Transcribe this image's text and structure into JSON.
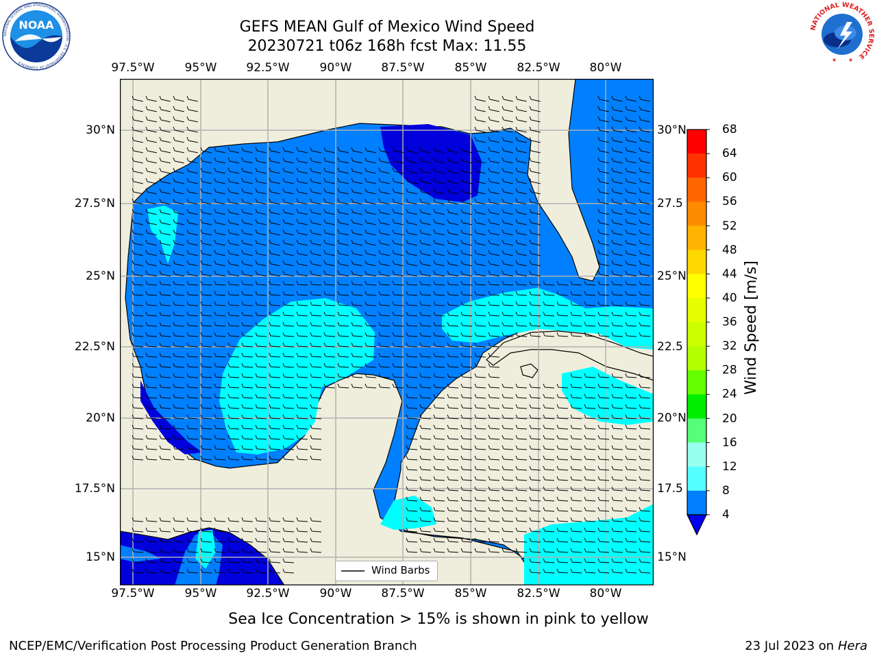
{
  "title": {
    "line1": "GEFS MEAN Gulf of Mexico Wind Speed",
    "line2": "20230721 t06z 168h fcst   Max: 11.55"
  },
  "map": {
    "lon_ticks": [
      "97.5°W",
      "95°W",
      "92.5°W",
      "90°W",
      "87.5°W",
      "85°W",
      "82.5°W",
      "80°W"
    ],
    "lat_ticks": [
      "30°N",
      "27.5°N",
      "25°N",
      "22.5°N",
      "20°N",
      "17.5°N",
      "15°N"
    ],
    "lat_ticks_right": [
      "30°N",
      "27.5",
      "25°N",
      "22.5",
      "20°N",
      "17.5",
      "15°N"
    ],
    "extent": {
      "lon": [
        -98,
        -78
      ],
      "lat": [
        14,
        31.5
      ]
    },
    "land_color": "#efeddc",
    "grid": true,
    "legend": {
      "label": "Wind Barbs",
      "placement": "bottom-center"
    }
  },
  "colorbar": {
    "label": "Wind Speed [m/s]",
    "ticks": [
      "68",
      "64",
      "60",
      "56",
      "52",
      "48",
      "44",
      "40",
      "36",
      "32",
      "28",
      "24",
      "20",
      "16",
      "12",
      "8",
      "4"
    ],
    "colors": [
      "#ff0000",
      "#ff3300",
      "#ff6600",
      "#ff8c00",
      "#ffb300",
      "#ffd700",
      "#ffff00",
      "#e6ff00",
      "#ccff00",
      "#b3ff00",
      "#66ff00",
      "#00ee00",
      "#55ff77",
      "#99ffee",
      "#55ffff",
      "#00ffff",
      "#0080ff"
    ],
    "extend_color": "#0000ee"
  },
  "footer": {
    "note": "Sea Ice Concentration > 15% is shown in pink to yellow",
    "left": "NCEP/EMC/Verification Post Processing Product Generation Branch",
    "right_prefix": "23 Jul 2023 on ",
    "right_italic": "Hera"
  },
  "logos": {
    "noaa_text": "NOAA",
    "noaa_ring": "NATIONAL OCEANIC AND ATMOSPHERIC ADMINISTRATION · U.S. DEPARTMENT OF COMMERCE",
    "nws_ring": "NATIONAL WEATHER SERVICE"
  }
}
